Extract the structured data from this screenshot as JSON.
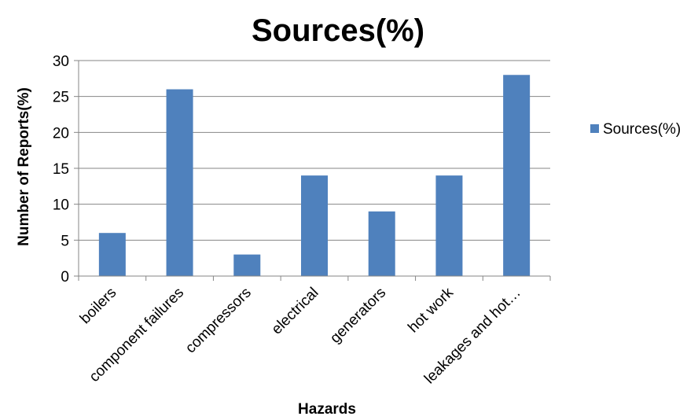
{
  "chart_data": {
    "type": "bar",
    "title": "Sources(%)",
    "xlabel": "Hazards",
    "ylabel": "Number of Reports(%)",
    "categories": [
      "boilers",
      "component failures",
      "compressors",
      "electrical",
      "generators",
      "hot work",
      "leakages and hot…"
    ],
    "series": [
      {
        "name": "Sources(%)",
        "values": [
          6,
          26,
          3,
          14,
          9,
          14,
          28
        ],
        "color": "#4F81BD"
      }
    ],
    "ylim": [
      0,
      30
    ],
    "yticks": [
      0,
      5,
      10,
      15,
      20,
      25,
      30
    ],
    "grid": true,
    "legend_position": "right"
  }
}
